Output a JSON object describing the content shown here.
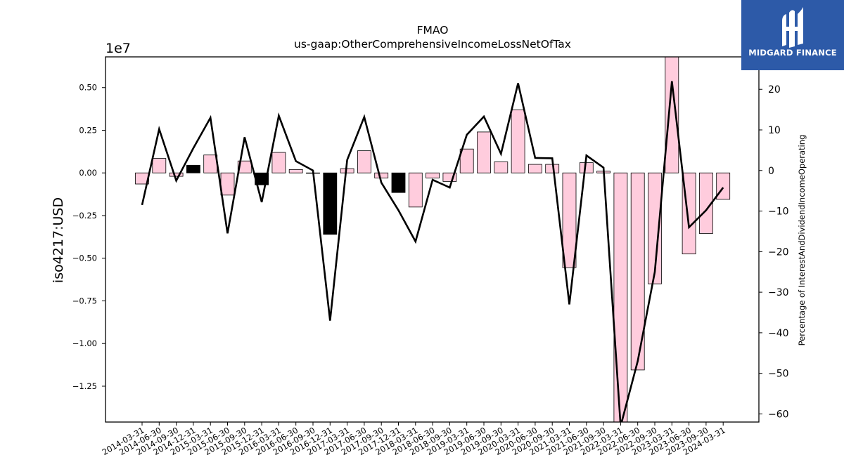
{
  "chart_data": {
    "type": "bar",
    "title": "FMAO",
    "subtitle": "us-gaap:OtherComprehensiveIncomeLossNetOfTax",
    "ylabel": "iso4217:USD",
    "y_offset_label": "1e7",
    "y2label": "Percentage of InterestAndDividendIncomeOperating",
    "ylim": [
      -1.46,
      0.68
    ],
    "y2lim": [
      -62,
      28
    ],
    "yticks": [
      "0.50",
      "0.25",
      "0.00",
      "−0.25",
      "−0.50",
      "−0.75",
      "−1.00",
      "−1.25"
    ],
    "yticks_values": [
      0.5,
      0.25,
      0.0,
      -0.25,
      -0.5,
      -0.75,
      -1.0,
      -1.25
    ],
    "y2ticks": [
      "20",
      "10",
      "0",
      "−10",
      "−20",
      "−30",
      "−40",
      "−50",
      "−60"
    ],
    "y2ticks_values": [
      20,
      10,
      0,
      -10,
      -20,
      -30,
      -40,
      -50,
      -60
    ],
    "categories": [
      "2014-03-31",
      "2014-06-30",
      "2014-09-30",
      "2014-12-31",
      "2015-03-31",
      "2015-06-30",
      "2015-09-30",
      "2015-12-31",
      "2016-03-31",
      "2016-06-30",
      "2016-09-30",
      "2016-12-31",
      "2017-03-31",
      "2017-06-30",
      "2017-09-30",
      "2017-12-31",
      "2018-03-31",
      "2018-06-30",
      "2018-09-30",
      "2019-03-31",
      "2019-06-30",
      "2019-09-30",
      "2020-03-31",
      "2020-06-30",
      "2020-09-30",
      "2021-03-31",
      "2021-06-30",
      "2021-09-30",
      "2022-03-31",
      "2022-06-30",
      "2022-09-30",
      "2023-03-31",
      "2023-06-30",
      "2023-09-30",
      "2024-03-31"
    ],
    "series": [
      {
        "type": "bar",
        "values": [
          -0.065,
          0.085,
          -0.02,
          0.045,
          0.105,
          -0.13,
          0.07,
          -0.07,
          0.12,
          0.02,
          0.0,
          -0.36,
          0.025,
          0.13,
          -0.03,
          -0.115,
          -0.2,
          -0.03,
          -0.05,
          0.14,
          0.24,
          0.065,
          0.37,
          0.05,
          0.05,
          -0.555,
          0.06,
          0.01,
          -1.5,
          -1.155,
          -0.65,
          0.68,
          -0.475,
          -0.355,
          -0.155
        ],
        "colors": [
          "#ffccdd",
          "#ffccdd",
          "#ffccdd",
          "#000000",
          "#ffccdd",
          "#ffccdd",
          "#ffccdd",
          "#000000",
          "#ffccdd",
          "#ffccdd",
          "#ffccdd",
          "#000000",
          "#ffccdd",
          "#ffccdd",
          "#ffccdd",
          "#000000",
          "#ffccdd",
          "#ffccdd",
          "#ffccdd",
          "#ffccdd",
          "#ffccdd",
          "#ffccdd",
          "#ffccdd",
          "#ffccdd",
          "#ffccdd",
          "#ffccdd",
          "#ffccdd",
          "#ffccdd",
          "#ffccdd",
          "#ffccdd",
          "#ffccdd",
          "#ffccdd",
          "#ffccdd",
          "#ffccdd",
          "#ffccdd"
        ]
      },
      {
        "type": "line",
        "axis": "right",
        "color": "#000000",
        "values": [
          -8.5,
          10.2,
          -2.5,
          5.5,
          13.0,
          -15.5,
          8.2,
          -7.8,
          13.5,
          2.3,
          0.0,
          -37.0,
          2.6,
          13.2,
          -3.0,
          -9.8,
          -17.5,
          -2.3,
          -4.2,
          8.8,
          13.3,
          4.1,
          21.5,
          3.1,
          3.0,
          -33.0,
          3.7,
          0.7,
          -63.0,
          -47.0,
          -25.0,
          22.0,
          -14.0,
          -9.8,
          -4.2
        ]
      }
    ],
    "grid": false
  },
  "logo": {
    "text": "MIDGARD FINANCE",
    "bg_color": "#2d5aa8",
    "icon": "midgard-m-icon"
  }
}
